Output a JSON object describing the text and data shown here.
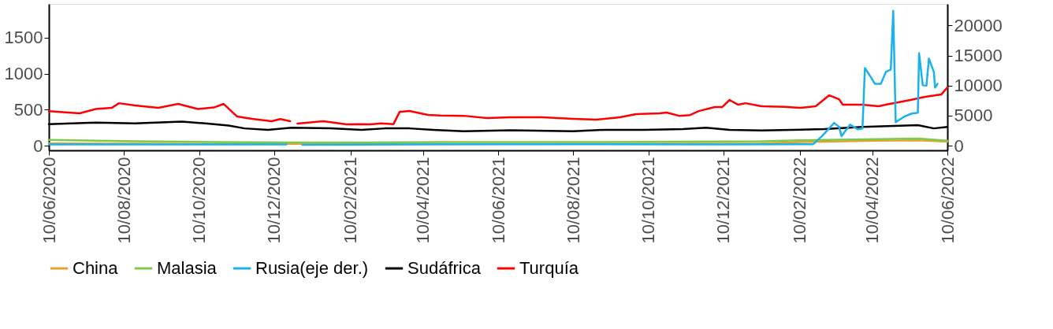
{
  "chart_data": {
    "type": "line",
    "legend": "bottom",
    "grid": false,
    "xlim": [
      "2020-06-10",
      "2022-06-10"
    ],
    "xticks": [
      {
        "value": "2020-06-10",
        "label": "10/06/2020"
      },
      {
        "value": "2020-08-10",
        "label": "10/08/2020"
      },
      {
        "value": "2020-10-10",
        "label": "10/10/2020"
      },
      {
        "value": "2020-12-10",
        "label": "10/12/2020"
      },
      {
        "value": "2021-02-10",
        "label": "10/02/2021"
      },
      {
        "value": "2021-04-10",
        "label": "10/04/2021"
      },
      {
        "value": "2021-06-10",
        "label": "10/06/2021"
      },
      {
        "value": "2021-08-10",
        "label": "10/08/2021"
      },
      {
        "value": "2021-10-10",
        "label": "10/10/2021"
      },
      {
        "value": "2021-12-10",
        "label": "10/12/2021"
      },
      {
        "value": "2022-02-10",
        "label": "10/02/2022"
      },
      {
        "value": "2022-04-10",
        "label": "10/04/2022"
      },
      {
        "value": "2022-06-10",
        "label": "10/06/2022"
      }
    ],
    "ylim": [
      -65,
      1970
    ],
    "yticks": [
      0,
      500,
      1000,
      1500
    ],
    "y2lim": [
      -780,
      23600
    ],
    "y2ticks": [
      0,
      5000,
      10000,
      15000,
      20000
    ],
    "series": [
      {
        "name": "China",
        "color": "#e5a52a",
        "x": [
          "2020-06-10",
          "2020-08-19",
          "2020-10-22",
          "2020-12-24",
          "2021-02-26",
          "2021-04-30",
          "2021-09-04",
          "2021-11-07",
          "2022-01-10",
          "2022-02-10",
          "2022-04-15",
          "2022-05-17",
          "2022-06-10"
        ],
        "values": [
          30,
          28,
          25,
          25,
          22,
          22,
          25,
          28,
          30,
          50,
          70,
          75,
          55
        ]
      },
      {
        "name": "Malasia",
        "color": "#7ec850",
        "x": [
          "2020-06-10",
          "2020-08-19",
          "2020-10-22",
          "2020-12-24",
          "2021-02-26",
          "2021-04-30",
          "2021-09-04",
          "2021-11-07",
          "2022-01-10",
          "2022-02-10",
          "2022-04-15",
          "2022-05-17",
          "2022-06-10"
        ],
        "values": [
          80,
          60,
          50,
          45,
          45,
          50,
          50,
          55,
          60,
          75,
          90,
          100,
          70
        ]
      },
      {
        "name": "Rusia(eje der.)",
        "color": "#1ab2e8",
        "axis": "y2",
        "x": [
          "2020-06-10",
          "2020-12-20",
          "2020-12-26",
          "2021-01-02",
          "2021-06-01",
          "2021-12-01",
          "2022-02-21",
          "2022-02-28",
          "2022-03-10",
          "2022-03-14",
          "2022-03-16",
          "2022-03-23",
          "2022-03-29",
          "2022-04-02",
          "2022-04-04",
          "2022-04-09",
          "2022-04-12",
          "2022-04-17",
          "2022-04-21",
          "2022-04-25",
          "2022-04-27",
          "2022-04-29",
          "2022-05-06",
          "2022-05-12",
          "2022-05-17",
          "2022-05-18",
          "2022-05-21",
          "2022-05-24",
          "2022-05-26",
          "2022-05-30",
          "2022-05-31",
          "2022-06-02"
        ],
        "values": [
          200,
          200,
          null,
          150,
          250,
          200,
          250,
          1570,
          3790,
          3130,
          1570,
          3520,
          2740,
          2870,
          12920,
          11360,
          10310,
          10310,
          12270,
          12660,
          22450,
          3920,
          4830,
          5350,
          5480,
          15400,
          10050,
          10000,
          14490,
          12270,
          9660,
          10310
        ]
      },
      {
        "name": "Sudáfrica",
        "color": "#000000",
        "x": [
          "2020-06-10",
          "2020-07-18",
          "2020-08-19",
          "2020-09-26",
          "2020-10-15",
          "2020-11-03",
          "2020-11-16",
          "2020-12-05",
          "2020-12-24",
          "2021-01-25",
          "2021-02-19",
          "2021-03-10",
          "2021-03-30",
          "2021-04-18",
          "2021-05-13",
          "2021-06-20",
          "2021-08-10",
          "2021-09-04",
          "2021-10-06",
          "2021-11-07",
          "2021-11-26",
          "2021-12-15",
          "2022-01-10",
          "2022-03-02",
          "2022-04-02",
          "2022-05-17",
          "2022-05-30",
          "2022-06-10"
        ],
        "values": [
          300,
          320,
          310,
          335,
          310,
          280,
          240,
          220,
          250,
          240,
          220,
          240,
          240,
          220,
          200,
          215,
          200,
          220,
          220,
          230,
          250,
          220,
          210,
          230,
          260,
          285,
          240,
          260
        ]
      },
      {
        "name": "Turquía",
        "color": "#ff0000",
        "x": [
          "2020-06-10",
          "2020-07-05",
          "2020-07-18",
          "2020-07-31",
          "2020-08-06",
          "2020-08-19",
          "2020-09-07",
          "2020-09-23",
          "2020-10-09",
          "2020-10-22",
          "2020-10-30",
          "2020-11-10",
          "2020-11-22",
          "2020-12-08",
          "2020-12-15",
          "2020-12-23",
          "2020-12-26",
          "2020-12-29",
          "2021-01-19",
          "2021-02-07",
          "2021-02-19",
          "2021-02-26",
          "2021-03-07",
          "2021-03-17",
          "2021-03-22",
          "2021-03-30",
          "2021-04-14",
          "2021-04-24",
          "2021-05-13",
          "2021-06-01",
          "2021-06-20",
          "2021-07-16",
          "2021-08-10",
          "2021-08-29",
          "2021-09-17",
          "2021-09-30",
          "2021-10-19",
          "2021-10-25",
          "2021-11-04",
          "2021-11-13",
          "2021-11-20",
          "2021-12-03",
          "2021-12-09",
          "2021-12-15",
          "2021-12-22",
          "2021-12-28",
          "2022-01-10",
          "2022-01-29",
          "2022-02-10",
          "2022-02-23",
          "2022-03-06",
          "2022-03-14",
          "2022-03-17",
          "2022-04-02",
          "2022-04-15",
          "2022-04-21",
          "2022-05-11",
          "2022-05-23",
          "2022-06-05",
          "2022-06-10"
        ],
        "values": [
          480,
          450,
          510,
          525,
          590,
          558,
          525,
          580,
          510,
          530,
          580,
          405,
          372,
          340,
          370,
          340,
          null,
          306,
          340,
          295,
          300,
          295,
          310,
          300,
          470,
          481,
          427,
          420,
          415,
          383,
          394,
          394,
          372,
          361,
          394,
          438,
          449,
          460,
          415,
          425,
          481,
          536,
          536,
          635,
          569,
          590,
          547,
          540,
          525,
          547,
          700,
          645,
          569,
          569,
          547,
          569,
          635,
          678,
          711,
          810
        ]
      }
    ]
  }
}
